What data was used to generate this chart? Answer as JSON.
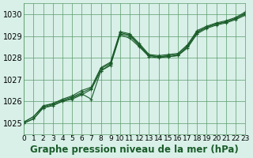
{
  "bg_color": "#d8f0e8",
  "grid_color": "#5a9a6a",
  "line_color": "#1a5c2a",
  "marker_color": "#1a5c2a",
  "xlabel": "Graphe pression niveau de la mer (hPa)",
  "xlabel_fontsize": 8.5,
  "ylabel_fontsize": 7,
  "tick_fontsize": 6.5,
  "xlim": [
    0,
    23
  ],
  "ylim": [
    1024.5,
    1030.5
  ],
  "yticks": [
    1025,
    1026,
    1027,
    1028,
    1029,
    1030
  ],
  "xticks": [
    0,
    1,
    2,
    3,
    4,
    5,
    6,
    7,
    8,
    9,
    10,
    11,
    12,
    13,
    14,
    15,
    16,
    17,
    18,
    19,
    20,
    21,
    22,
    23
  ],
  "series": [
    {
      "x": [
        0,
        1,
        2,
        3,
        4,
        5,
        6,
        7,
        8,
        9,
        10,
        11,
        12,
        13,
        14,
        15,
        16,
        17,
        18,
        19,
        20,
        21,
        22,
        23
      ],
      "y": [
        1025.0,
        1025.2,
        1025.7,
        1025.8,
        1026.0,
        1026.1,
        1026.3,
        1026.55,
        1027.4,
        1027.7,
        1029.1,
        1029.0,
        1028.55,
        1028.1,
        1028.05,
        1028.05,
        1028.1,
        1028.5,
        1029.15,
        1029.4,
        1029.55,
        1029.65,
        1029.8,
        1030.0
      ]
    },
    {
      "x": [
        0,
        1,
        2,
        3,
        4,
        5,
        6,
        7,
        8,
        9,
        10,
        11,
        12,
        13,
        14,
        15,
        16,
        17,
        18,
        19,
        20,
        21,
        22,
        23
      ],
      "y": [
        1025.0,
        1025.2,
        1025.7,
        1025.85,
        1026.0,
        1026.15,
        1026.35,
        1026.1,
        1027.4,
        1027.65,
        1029.05,
        1028.9,
        1028.5,
        1028.05,
        1028.0,
        1028.05,
        1028.1,
        1028.45,
        1029.1,
        1029.35,
        1029.5,
        1029.6,
        1029.75,
        1029.95
      ]
    },
    {
      "x": [
        0,
        1,
        2,
        3,
        4,
        5,
        6,
        7,
        8,
        9,
        10,
        11,
        12,
        13,
        14,
        15,
        16,
        17,
        18,
        19,
        20,
        21,
        22,
        23
      ],
      "y": [
        1025.05,
        1025.3,
        1025.75,
        1025.9,
        1026.05,
        1026.2,
        1026.4,
        1026.6,
        1027.5,
        1027.75,
        1029.15,
        1029.05,
        1028.6,
        1028.1,
        1028.05,
        1028.1,
        1028.15,
        1028.55,
        1029.2,
        1029.4,
        1029.55,
        1029.65,
        1029.8,
        1030.05
      ]
    },
    {
      "x": [
        0,
        1,
        2,
        3,
        4,
        5,
        6,
        7,
        8,
        9,
        10,
        11,
        12,
        13,
        14,
        15,
        16,
        17,
        18,
        19,
        20,
        21,
        22,
        23
      ],
      "y": [
        1025.05,
        1025.3,
        1025.8,
        1025.9,
        1026.1,
        1026.25,
        1026.5,
        1026.65,
        1027.55,
        1027.8,
        1029.2,
        1029.1,
        1028.65,
        1028.15,
        1028.1,
        1028.15,
        1028.2,
        1028.6,
        1029.25,
        1029.45,
        1029.6,
        1029.7,
        1029.85,
        1030.1
      ]
    }
  ]
}
